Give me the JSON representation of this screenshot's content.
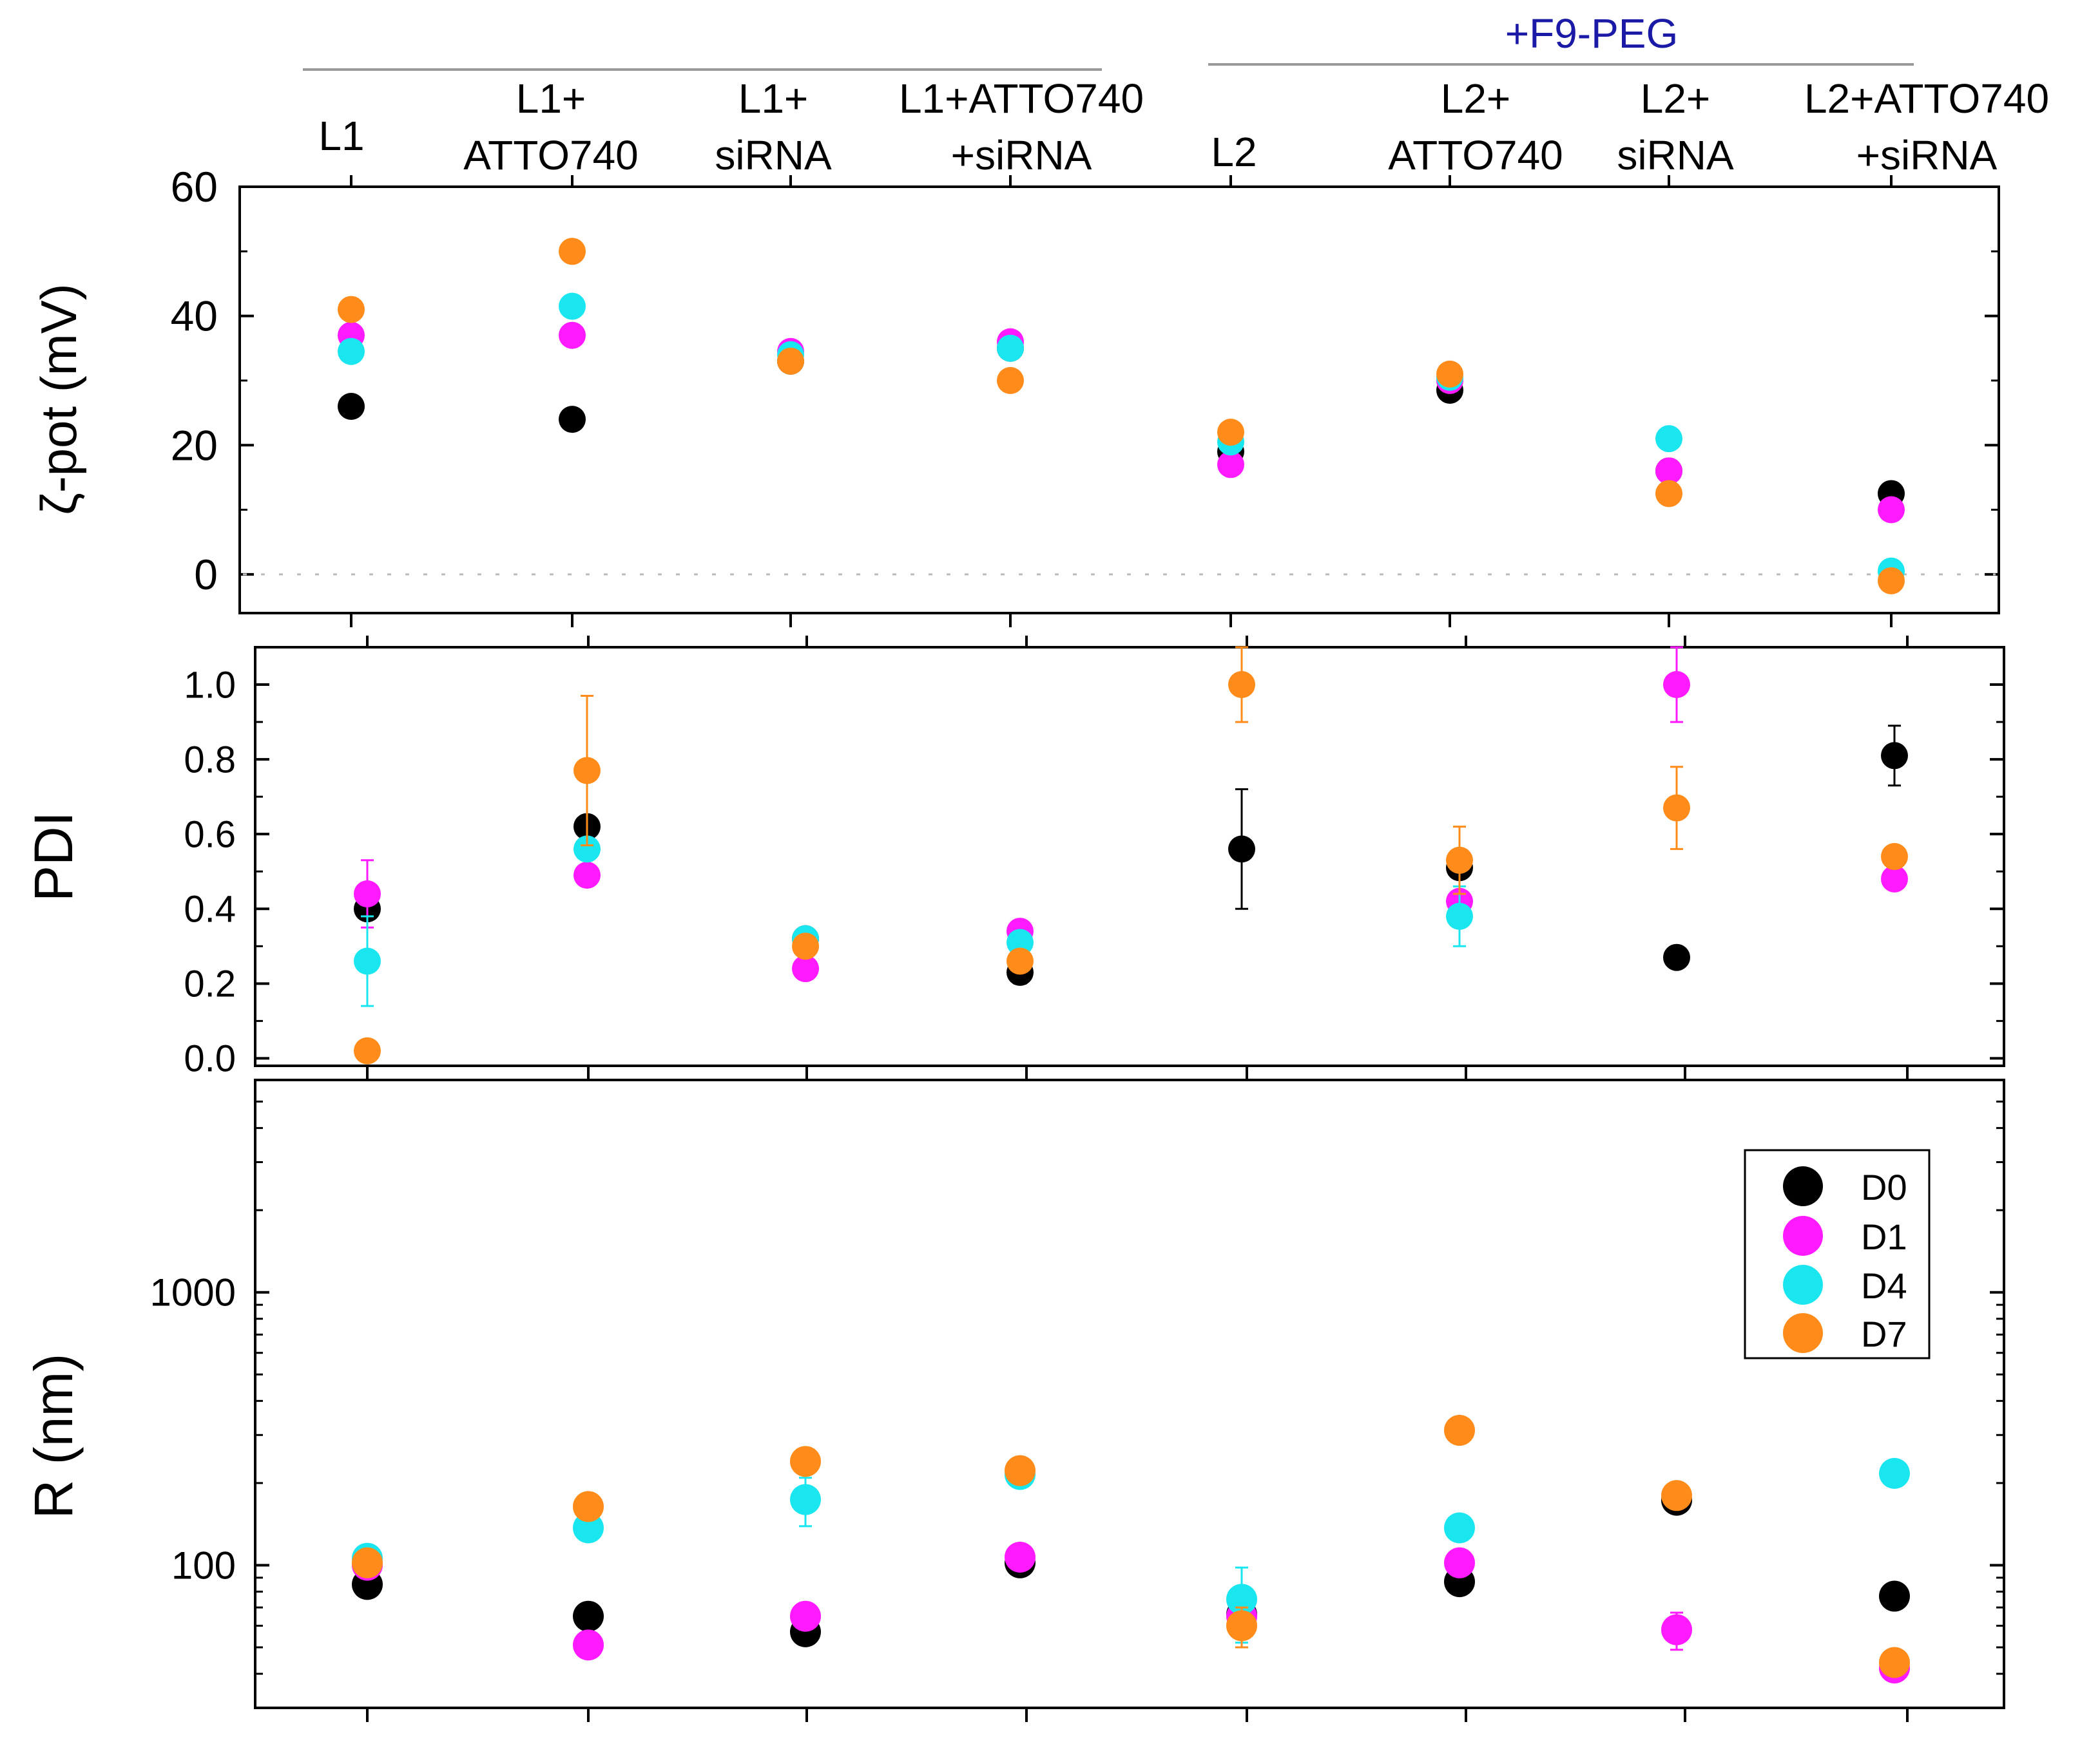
{
  "groups": [
    {
      "label": "+F9-PEG",
      "color": "#1a1aa6"
    }
  ],
  "categories": [
    [
      "L1"
    ],
    [
      "L1+",
      "ATTO740"
    ],
    [
      "L1+",
      "siRNA"
    ],
    [
      "L1+ATTO740",
      " +siRNA"
    ],
    [
      "L2"
    ],
    [
      "L2+",
      "ATTO740"
    ],
    [
      "L2+",
      "siRNA"
    ],
    [
      "L2+ATTO740",
      "+siRNA"
    ]
  ],
  "legend": [
    {
      "name": "D0",
      "color": "#000000"
    },
    {
      "name": "D1",
      "color": "#ff1aff"
    },
    {
      "name": "D4",
      "color": "#1ae6f0"
    },
    {
      "name": "D7",
      "color": "#ff8c1a"
    }
  ],
  "chart_data": [
    {
      "type": "scatter",
      "title": "",
      "xlabel": "",
      "ylabel": "ζ-pot (mV)",
      "ylim": [
        -6,
        60
      ],
      "yticks": [
        0,
        20,
        40,
        60
      ],
      "yticklabels": [
        "0",
        "20",
        "40",
        "60"
      ],
      "zero_line": true,
      "series": [
        {
          "name": "D0",
          "values": [
            26,
            24,
            33,
            35,
            19,
            28.5,
            16,
            12.5
          ]
        },
        {
          "name": "D1",
          "values": [
            37,
            37,
            34.5,
            36,
            17,
            30,
            16,
            10
          ]
        },
        {
          "name": "D4",
          "values": [
            34.5,
            41.5,
            34,
            35,
            20.5,
            30.5,
            21,
            0.5
          ]
        },
        {
          "name": "D7",
          "values": [
            41,
            50,
            33,
            30,
            22,
            31,
            12.5,
            -1
          ]
        }
      ]
    },
    {
      "type": "scatter",
      "title": "",
      "xlabel": "",
      "ylabel": "PDI",
      "ylim": [
        -0.02,
        1.1
      ],
      "yticks": [
        0,
        0.2,
        0.4,
        0.6,
        0.8,
        1.0
      ],
      "yticklabels": [
        "0.0",
        "0.2",
        "0.4",
        "0.6",
        "0.8",
        "1.0"
      ],
      "series": [
        {
          "name": "D0",
          "values": [
            0.4,
            0.62,
            0.32,
            0.23,
            0.56,
            0.51,
            0.27,
            0.81
          ],
          "errors": [
            0,
            0,
            0,
            0.03,
            0.16,
            0,
            0.02,
            0.08
          ]
        },
        {
          "name": "D1",
          "values": [
            0.44,
            0.49,
            0.24,
            0.34,
            null,
            0.42,
            1.0,
            0.48
          ],
          "errors": [
            0.09,
            0,
            0,
            0,
            0,
            0,
            0.1,
            0
          ]
        },
        {
          "name": "D4",
          "values": [
            0.26,
            0.56,
            0.32,
            0.31,
            null,
            0.38,
            null,
            null
          ],
          "errors": [
            0.12,
            0,
            0,
            0,
            0,
            0.08,
            0,
            0
          ]
        },
        {
          "name": "D7",
          "values": [
            0.02,
            0.77,
            0.3,
            0.26,
            1.0,
            0.53,
            0.67,
            0.54
          ],
          "errors": [
            0,
            0.2,
            0,
            0,
            0.1,
            0.09,
            0.11,
            0
          ]
        }
      ]
    },
    {
      "type": "scatter",
      "title": "",
      "xlabel": "",
      "ylabel": "R (nm)",
      "yscale": "log",
      "ylim": [
        30,
        6000
      ],
      "yticks": [
        100,
        1000
      ],
      "yticklabels": [
        "100",
        "1000"
      ],
      "series": [
        {
          "name": "D0",
          "values": [
            85,
            65,
            57,
            102,
            66,
            87,
            173,
            77
          ],
          "errors": [
            0,
            0,
            0,
            0,
            0,
            0,
            0,
            0
          ]
        },
        {
          "name": "D1",
          "values": [
            100,
            51,
            65,
            107,
            65,
            102,
            58,
            42
          ],
          "errors": [
            0,
            0,
            0,
            0,
            0,
            0,
            9,
            0
          ]
        },
        {
          "name": "D4",
          "values": [
            106,
            137,
            174,
            215,
            75,
            137,
            null,
            217
          ],
          "errors": [
            0,
            0,
            35,
            0,
            23,
            0,
            0,
            0
          ]
        },
        {
          "name": "D7",
          "values": [
            102,
            164,
            240,
            222,
            60,
            312,
            180,
            44
          ],
          "errors": [
            0,
            0,
            0,
            0,
            10,
            0,
            0,
            0
          ]
        }
      ]
    }
  ]
}
